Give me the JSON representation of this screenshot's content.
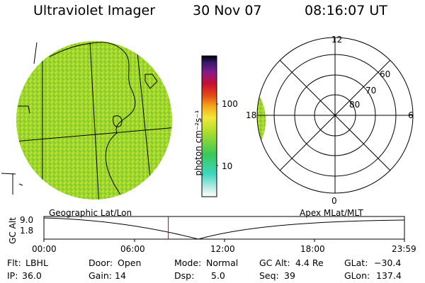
{
  "header": {
    "instrument": "Ultraviolet Imager",
    "date": "30 Nov 07",
    "time": "08:16:07 UT"
  },
  "colorbar": {
    "label": "photon cm⁻²s⁻¹",
    "ticks": [
      "100",
      "10"
    ]
  },
  "polar_plot": {
    "mlt_labels": [
      "12",
      "18",
      "6",
      "0"
    ],
    "mlat_labels": [
      "60",
      "70",
      "80"
    ]
  },
  "orbit_plot": {
    "left_caption": "Geographic Lat/Lon",
    "right_caption": "Apex MLat/MLT",
    "y_axis_label": "GC Alt",
    "y_ticks": [
      "9.0",
      "1.8"
    ],
    "x_ticks": [
      "00:00",
      "06:00",
      "12:00",
      "18:00",
      "23:59"
    ],
    "current_time_fraction": 0.345
  },
  "footer": {
    "row1": [
      {
        "label": "Flt:",
        "value": "LBHL"
      },
      {
        "label": "Door:",
        "value": "Open"
      },
      {
        "label": "Mode:",
        "value": "Normal"
      },
      {
        "label": "GC Alt:",
        "value": "4.4 Re"
      },
      {
        "label": "GLat:",
        "value": "−30.4"
      }
    ],
    "row2": [
      {
        "label": "IP:",
        "value": "36.0"
      },
      {
        "label": "Gain:",
        "value": "14"
      },
      {
        "label": "Dsp:",
        "value": "5.0"
      },
      {
        "label": "Seq:",
        "value": "39"
      },
      {
        "label": "GLon:",
        "value": "137.4"
      }
    ]
  },
  "colors": {
    "aurora_green": "#9bd630",
    "current_time_marker": "#cc0000"
  }
}
